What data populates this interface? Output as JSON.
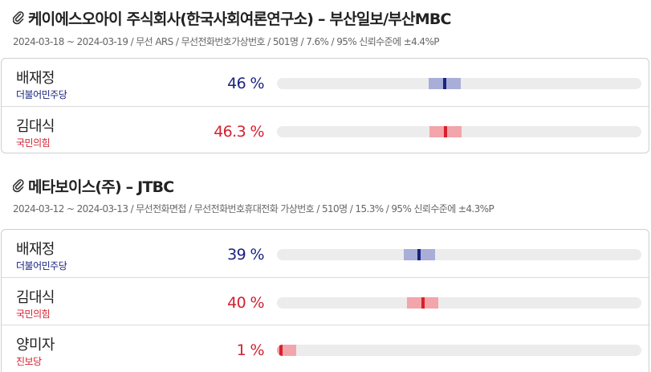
{
  "colors": {
    "blue_text": "#1a237e",
    "blue_band": "#a9aed9",
    "blue_marker": "#1a237e",
    "red_text": "#d32030",
    "red_band": "#f2a5aa",
    "red_marker": "#d8202c"
  },
  "polls": [
    {
      "icon": "paperclip-icon",
      "title": "케이에스오아이 주식회사(한국사회여론연구소) – 부산일보/부산MBC",
      "meta": "2024-03-18 ~ 2024-03-19 / 무선 ARS / 무선전화번호가상번호 / 501명 / 7.6% / 95% 신뢰수준에 ±4.4%P",
      "candidates": [
        {
          "name": "배재정",
          "party": "더불어민주당",
          "pct_label": "46 %",
          "pct": 46,
          "margin": 4.4,
          "color": "blue"
        },
        {
          "name": "김대식",
          "party": "국민의힘",
          "pct_label": "46.3 %",
          "pct": 46.3,
          "margin": 4.4,
          "color": "red"
        }
      ]
    },
    {
      "icon": "paperclip-icon",
      "title": "메타보이스(주) – JTBC",
      "meta": "2024-03-12 ~ 2024-03-13 / 무선전화면접 / 무선전화번호휴대전화 가상번호 / 510명 / 15.3% / 95% 신뢰수준에 ±4.3%P",
      "candidates": [
        {
          "name": "배재정",
          "party": "더불어민주당",
          "pct_label": "39 %",
          "pct": 39,
          "margin": 4.3,
          "color": "blue"
        },
        {
          "name": "김대식",
          "party": "국민의힘",
          "pct_label": "40 %",
          "pct": 40,
          "margin": 4.3,
          "color": "red"
        },
        {
          "name": "양미자",
          "party": "진보당",
          "pct_label": "1 %",
          "pct": 1,
          "margin": 4.3,
          "color": "red"
        }
      ]
    }
  ]
}
